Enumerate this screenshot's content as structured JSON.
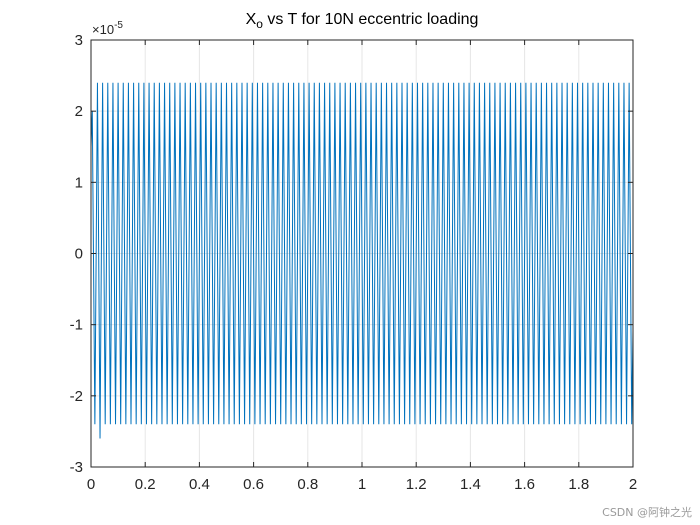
{
  "chart_data": {
    "type": "line",
    "title": {
      "prefix": "X",
      "subscript": "o",
      "rest": " vs T for 10N eccentric loading"
    },
    "xlabel": "",
    "ylabel": "",
    "xlim": [
      0,
      2
    ],
    "ylim": [
      -3,
      3
    ],
    "y_scale_exponent": {
      "base": "×10",
      "exponent": "-5"
    },
    "x_ticks": [
      0,
      0.2,
      0.4,
      0.6,
      0.8,
      1,
      1.2,
      1.4,
      1.6,
      1.8,
      2
    ],
    "x_tick_labels": [
      "0",
      "0.2",
      "0.4",
      "0.6",
      "0.8",
      "1",
      "1.2",
      "1.4",
      "1.6",
      "1.8",
      "2"
    ],
    "y_ticks": [
      -3,
      -2,
      -1,
      0,
      1,
      2,
      3
    ],
    "y_tick_labels": [
      "-3",
      "-2",
      "-1",
      "0",
      "1",
      "2",
      "3"
    ],
    "grid": true,
    "series": [
      {
        "name": "Xo",
        "color": "#0072BD",
        "amplitude": 2.4,
        "oscillation_cycles": 105,
        "peak_start": 2.0,
        "trough_start": -2.6,
        "t_start": 0,
        "t_end": 2
      }
    ]
  },
  "watermark": "CSDN @阿钟之光",
  "colors": {
    "axes": "#262626",
    "grid": "#e6e6e6",
    "line": "#0072BD"
  }
}
